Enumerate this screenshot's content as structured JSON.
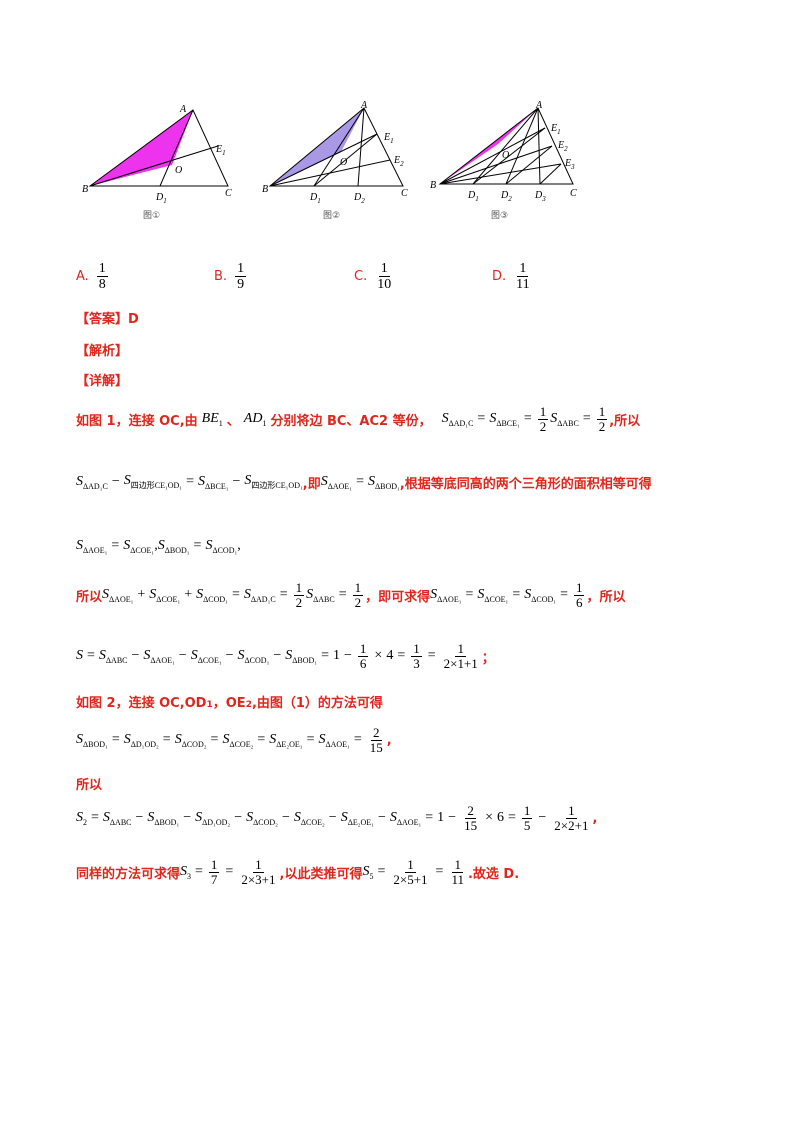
{
  "figure": {
    "captions": [
      "图①",
      "图②",
      "图③"
    ]
  },
  "options": [
    {
      "label": "A.",
      "num": "1",
      "den": "8"
    },
    {
      "label": "B.",
      "num": "1",
      "den": "9"
    },
    {
      "label": "C.",
      "num": "1",
      "den": "10"
    },
    {
      "label": "D.",
      "num": "1",
      "den": "11"
    }
  ],
  "answer": "【答案】D",
  "analysis": "【解析】",
  "detail": "【详解】",
  "text": {
    "p1_a": "如图 1，连接 OC,由",
    "p1_b": "分别将边 BC、AC2 等份，",
    "p1_c": ",所以",
    "p2_a": ",即",
    "p2_b": ",根据等底同高的两个三角形的面积相等可得",
    "p4_a": "所以",
    "p4_b": "，即可求得",
    "p4_c": "，所以",
    "p6": "如图 2，连接 OC,OD",
    "p6_b": "，OE",
    "p6_c": ",由图（1）的方法可得",
    "p8": "所以",
    "p10_a": "同样的方法可求得",
    "p10_b": ",以此类推可得",
    "p10_c": ".故选 D."
  }
}
